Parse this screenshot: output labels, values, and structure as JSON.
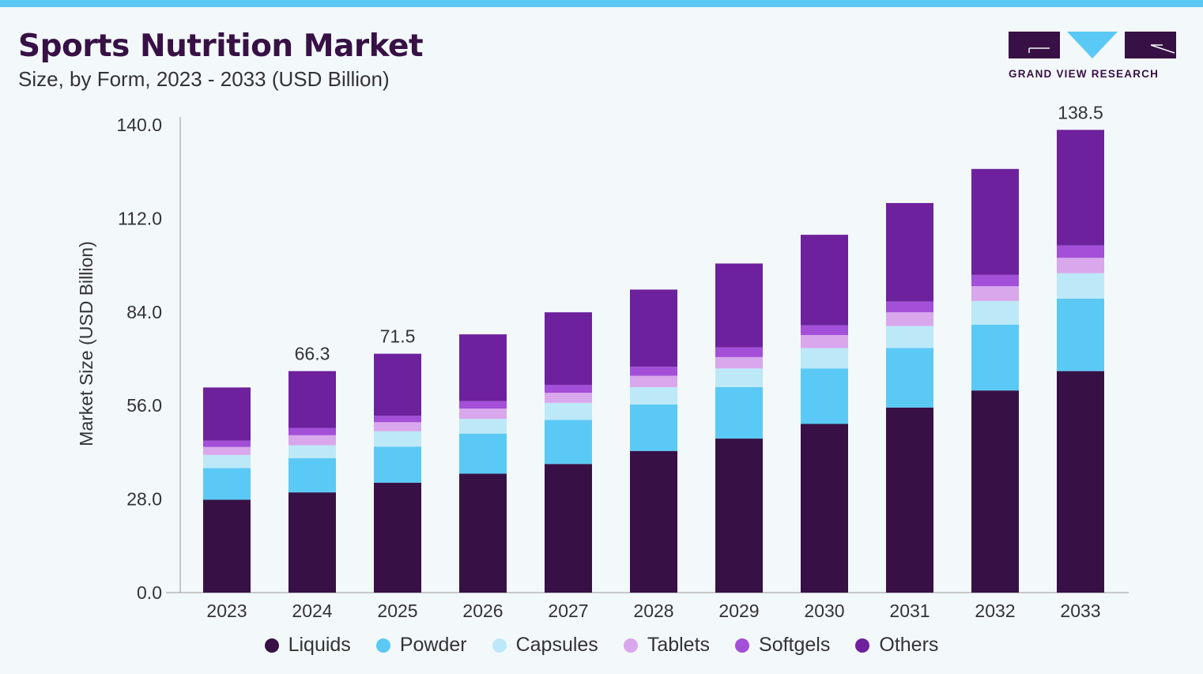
{
  "header": {
    "title": "Sports Nutrition Market",
    "subtitle": "Size, by Form, 2023 - 2033 (USD Billion)"
  },
  "logo": {
    "text": "GRAND VIEW RESEARCH",
    "colors": {
      "dark": "#371145",
      "accent": "#5bc9f5"
    }
  },
  "chart_data": {
    "type": "bar",
    "stacked": true,
    "title": "Sports Nutrition Market",
    "subtitle": "Size, by Form, 2023 - 2033 (USD Billion)",
    "xlabel": "",
    "ylabel": "Market Size (USD Billion)",
    "ylim": [
      0,
      140
    ],
    "yticks": [
      "0.0",
      "28.0",
      "56.0",
      "84.0",
      "112.0",
      "140.0"
    ],
    "grid": false,
    "legend_position": "bottom",
    "categories": [
      "2023",
      "2024",
      "2025",
      "2026",
      "2027",
      "2028",
      "2029",
      "2030",
      "2031",
      "2032",
      "2033"
    ],
    "series": [
      {
        "name": "Liquids",
        "color": "#371145",
        "values": [
          27.8,
          30.0,
          32.9,
          35.6,
          38.5,
          42.4,
          46.1,
          50.5,
          55.4,
          60.5,
          66.3
        ]
      },
      {
        "name": "Powder",
        "color": "#5bc9f5",
        "values": [
          9.5,
          10.2,
          10.8,
          12.0,
          13.2,
          13.9,
          15.4,
          16.6,
          17.8,
          19.7,
          21.7
        ]
      },
      {
        "name": "Capsules",
        "color": "#bde8f8",
        "values": [
          3.9,
          3.9,
          4.6,
          4.4,
          5.1,
          5.2,
          5.6,
          6.1,
          6.6,
          7.1,
          7.6
        ]
      },
      {
        "name": "Tablets",
        "color": "#d9a7ec",
        "values": [
          2.4,
          3.0,
          2.7,
          3.1,
          3.0,
          3.4,
          3.4,
          3.9,
          4.1,
          4.4,
          4.6
        ]
      },
      {
        "name": "Softgels",
        "color": "#a34fd8",
        "values": [
          1.9,
          2.2,
          1.9,
          2.2,
          2.4,
          2.7,
          2.9,
          2.9,
          3.2,
          3.4,
          3.7
        ]
      },
      {
        "name": "Others",
        "color": "#6e219c",
        "values": [
          15.9,
          17.0,
          18.6,
          20.0,
          21.7,
          23.1,
          25.1,
          27.1,
          29.5,
          31.7,
          34.6
        ]
      }
    ],
    "data_labels": [
      {
        "category": "2024",
        "text": "66.3"
      },
      {
        "category": "2025",
        "text": "71.5"
      },
      {
        "category": "2033",
        "text": "138.5"
      }
    ]
  }
}
